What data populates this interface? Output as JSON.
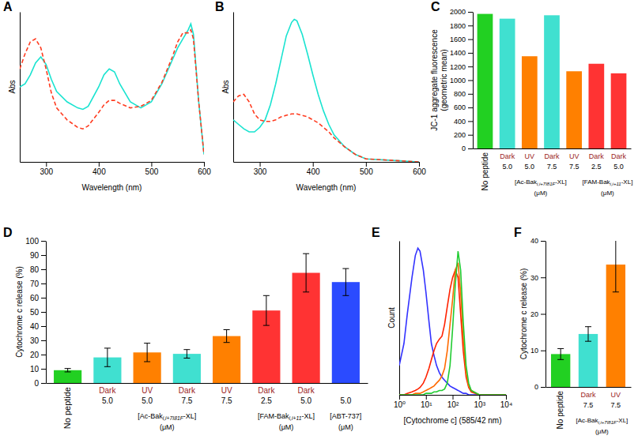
{
  "chart_data": [
    {
      "type": "line",
      "title": "A",
      "x_label": "Wavelength (nm)",
      "y_label": "Abs",
      "x": [
        250,
        260,
        270,
        280,
        290,
        300,
        310,
        320,
        340,
        360,
        370,
        380,
        400,
        410,
        420,
        430,
        440,
        460,
        480,
        500,
        520,
        540,
        550,
        560,
        570,
        575,
        580,
        590,
        600
      ],
      "series": [
        {
          "color": "#19e3d0",
          "line_style": "solid",
          "values": [
            0.5,
            0.52,
            0.58,
            0.66,
            0.7,
            0.65,
            0.55,
            0.47,
            0.4,
            0.36,
            0.35,
            0.37,
            0.5,
            0.58,
            0.62,
            0.6,
            0.52,
            0.4,
            0.36,
            0.4,
            0.52,
            0.68,
            0.76,
            0.82,
            0.88,
            0.92,
            0.85,
            0.4,
            0.05
          ]
        },
        {
          "color": "#ff3b1f",
          "line_style": "dashed",
          "values": [
            0.62,
            0.72,
            0.8,
            0.82,
            0.76,
            0.62,
            0.46,
            0.36,
            0.28,
            0.23,
            0.22,
            0.24,
            0.33,
            0.38,
            0.41,
            0.41,
            0.39,
            0.36,
            0.37,
            0.41,
            0.53,
            0.7,
            0.8,
            0.86,
            0.86,
            0.88,
            0.82,
            0.4,
            0.05
          ]
        }
      ],
      "xlim": [
        250,
        600
      ],
      "ylim": [
        0,
        1
      ],
      "xticks": [
        300,
        400,
        500,
        600
      ],
      "tick_labels": "x"
    },
    {
      "type": "line",
      "title": "B",
      "x_label": "Wavelength (nm)",
      "y_label": "Abs",
      "x": [
        250,
        260,
        270,
        280,
        290,
        300,
        310,
        320,
        330,
        340,
        350,
        360,
        365,
        370,
        380,
        390,
        400,
        410,
        420,
        430,
        440,
        460,
        480,
        500,
        550,
        600
      ],
      "series": [
        {
          "color": "#19e3d0",
          "line_style": "solid",
          "values": [
            0.28,
            0.25,
            0.22,
            0.2,
            0.2,
            0.23,
            0.28,
            0.38,
            0.52,
            0.68,
            0.84,
            0.93,
            0.95,
            0.94,
            0.85,
            0.72,
            0.58,
            0.45,
            0.34,
            0.25,
            0.18,
            0.1,
            0.05,
            0.02,
            0.01,
            0
          ]
        },
        {
          "color": "#ff3b1f",
          "line_style": "dashed",
          "values": [
            0.4,
            0.44,
            0.45,
            0.4,
            0.32,
            0.28,
            0.27,
            0.27,
            0.28,
            0.3,
            0.31,
            0.32,
            0.32,
            0.32,
            0.31,
            0.3,
            0.28,
            0.26,
            0.23,
            0.2,
            0.16,
            0.1,
            0.05,
            0.02,
            0.01,
            0
          ]
        }
      ],
      "xlim": [
        250,
        600
      ],
      "ylim": [
        0,
        1
      ],
      "xticks": [
        300,
        400,
        500,
        600
      ],
      "tick_labels": "x"
    },
    {
      "type": "bar",
      "title": "C",
      "y_label": [
        "JC-1 aggregate fluorescence",
        "(geometric mean)"
      ],
      "categories": [
        "No peptide",
        "Dark",
        "UV",
        "Dark",
        "UV",
        "Dark",
        "Dark"
      ],
      "concentrations": [
        null,
        "5.0",
        "5.0",
        "7.5",
        "7.5",
        "2.5",
        "5.0"
      ],
      "groups": [
        {
          "prefix": "[Ac-Bak",
          "subscript": "i,i+7I81F",
          "suffix": "-XL]",
          "unit": "(μM)",
          "members": [
            1,
            2,
            3,
            4
          ]
        },
        {
          "prefix": "[FAM-Bak",
          "subscript": "i,i+11",
          "suffix": "-XL]",
          "unit": "(μM)",
          "members": [
            5,
            6
          ]
        }
      ],
      "values": [
        1970,
        1900,
        1350,
        1950,
        1130,
        1240,
        1100
      ],
      "colors": [
        "#22d022",
        "#40e0d0",
        "#ff8000",
        "#40e0d0",
        "#ff8000",
        "#ff3333",
        "#ff3333"
      ],
      "ylim": [
        0,
        2000
      ],
      "yticks": [
        0,
        200,
        400,
        600,
        800,
        1000,
        1200,
        1400,
        1600,
        1800,
        2000
      ]
    },
    {
      "type": "bar",
      "title": "D",
      "y_label": "Cytochrome c release (%)",
      "categories": [
        "No peptide",
        "Dark",
        "UV",
        "Dark",
        "UV",
        "Dark",
        "Dark",
        null
      ],
      "concentrations": [
        null,
        "5.0",
        "5.0",
        "7.5",
        "7.5",
        "2.5",
        "5.0",
        "5.0"
      ],
      "groups": [
        {
          "prefix": "[Ac-Bak",
          "subscript": "i,i+7I81F",
          "suffix": "-XL]",
          "unit": "(μM)",
          "members": [
            1,
            2,
            3,
            4
          ]
        },
        {
          "prefix": "[FAM-Bak",
          "subscript": "i,i+11",
          "suffix": "-XL]",
          "unit": "(μM)",
          "members": [
            5,
            6
          ]
        },
        {
          "prefix": "[ABT-737]",
          "unit": "(μM)",
          "members": [
            7
          ]
        }
      ],
      "values": [
        9,
        18,
        21.5,
        20.5,
        33,
        51,
        77.5,
        71
      ],
      "errors": [
        1.2,
        6.5,
        6.5,
        3,
        4.5,
        10.5,
        13.5,
        9.5
      ],
      "colors": [
        "#22d022",
        "#40e0d0",
        "#ff8000",
        "#40e0d0",
        "#ff8000",
        "#ff3333",
        "#ff3333",
        "#2b4bff"
      ],
      "ylim": [
        0,
        100
      ],
      "yticks": [
        0,
        10,
        20,
        30,
        40,
        50,
        60,
        70,
        80,
        90,
        100
      ]
    },
    {
      "type": "line",
      "title": "E",
      "x_label": "[Cytochrome c] (585/42 nm)",
      "y_label": "Count",
      "log": "x",
      "x": [
        1,
        1.5,
        2,
        3,
        4,
        5,
        6,
        8,
        10,
        13,
        16,
        20,
        25,
        32,
        40,
        50,
        63,
        80,
        100,
        126,
        160,
        200,
        250,
        320,
        400,
        500,
        1000,
        10000
      ],
      "series": [
        {
          "color": "#3333ff",
          "line_style": "solid",
          "values": [
            0.2,
            0.35,
            0.55,
            0.8,
            0.95,
            1.0,
            0.98,
            0.85,
            0.7,
            0.5,
            0.35,
            0.27,
            0.2,
            0.15,
            0.12,
            0.1,
            0.08,
            0.06,
            0.05,
            0.04,
            0.03,
            0.02,
            0.01,
            0.01,
            0,
            0,
            0,
            0
          ]
        },
        {
          "color": "#ff2200",
          "line_style": "solid",
          "values": [
            0,
            0,
            0.01,
            0.02,
            0.03,
            0.04,
            0.05,
            0.08,
            0.12,
            0.18,
            0.24,
            0.3,
            0.35,
            0.38,
            0.4,
            0.48,
            0.6,
            0.72,
            0.8,
            0.85,
            0.8,
            0.55,
            0.3,
            0.12,
            0.05,
            0.02,
            0,
            0
          ]
        },
        {
          "color": "#ff6a00",
          "line_style": "solid",
          "values": [
            0,
            0,
            0,
            0,
            0.01,
            0.01,
            0.01,
            0.02,
            0.03,
            0.04,
            0.05,
            0.06,
            0.08,
            0.1,
            0.13,
            0.18,
            0.3,
            0.48,
            0.65,
            0.85,
            0.9,
            0.7,
            0.4,
            0.15,
            0.06,
            0.03,
            0,
            0
          ]
        },
        {
          "color": "#22cc33",
          "line_style": "solid",
          "values": [
            0,
            0,
            0,
            0,
            0,
            0,
            0,
            0,
            0.01,
            0.01,
            0.01,
            0.02,
            0.02,
            0.03,
            0.03,
            0.04,
            0.08,
            0.2,
            0.45,
            0.75,
            0.98,
            0.85,
            0.5,
            0.2,
            0.08,
            0.03,
            0,
            0
          ]
        }
      ],
      "xlim": [
        1,
        10000
      ],
      "ylim": [
        0,
        1.05
      ],
      "xticks": [
        {
          "value": 1,
          "label": "10⁰"
        },
        {
          "value": 10,
          "label": "10¹"
        },
        {
          "value": 100,
          "label": "10²"
        },
        {
          "value": 1000,
          "label": "10³"
        },
        {
          "value": 10000,
          "label": "10⁴"
        }
      ],
      "tick_labels": "x"
    },
    {
      "type": "bar",
      "title": "F",
      "y_label": "Cytochrome c release (%)",
      "categories": [
        "No peptide",
        "Dark",
        "UV"
      ],
      "concentrations": [
        null,
        "7.5",
        "7.5"
      ],
      "groups": [
        {
          "prefix": "[Ac-Bak",
          "subscript": "i,i+7I81F",
          "suffix": "-XL]",
          "unit": "(μM)",
          "members": [
            1,
            2
          ]
        }
      ],
      "values": [
        9,
        14.5,
        33.5
      ],
      "errors": [
        1.5,
        2,
        7.5
      ],
      "colors": [
        "#22d022",
        "#40e0d0",
        "#ff8000"
      ],
      "ylim": [
        0,
        40
      ],
      "yticks": [
        0,
        10,
        20,
        30,
        40
      ]
    }
  ]
}
